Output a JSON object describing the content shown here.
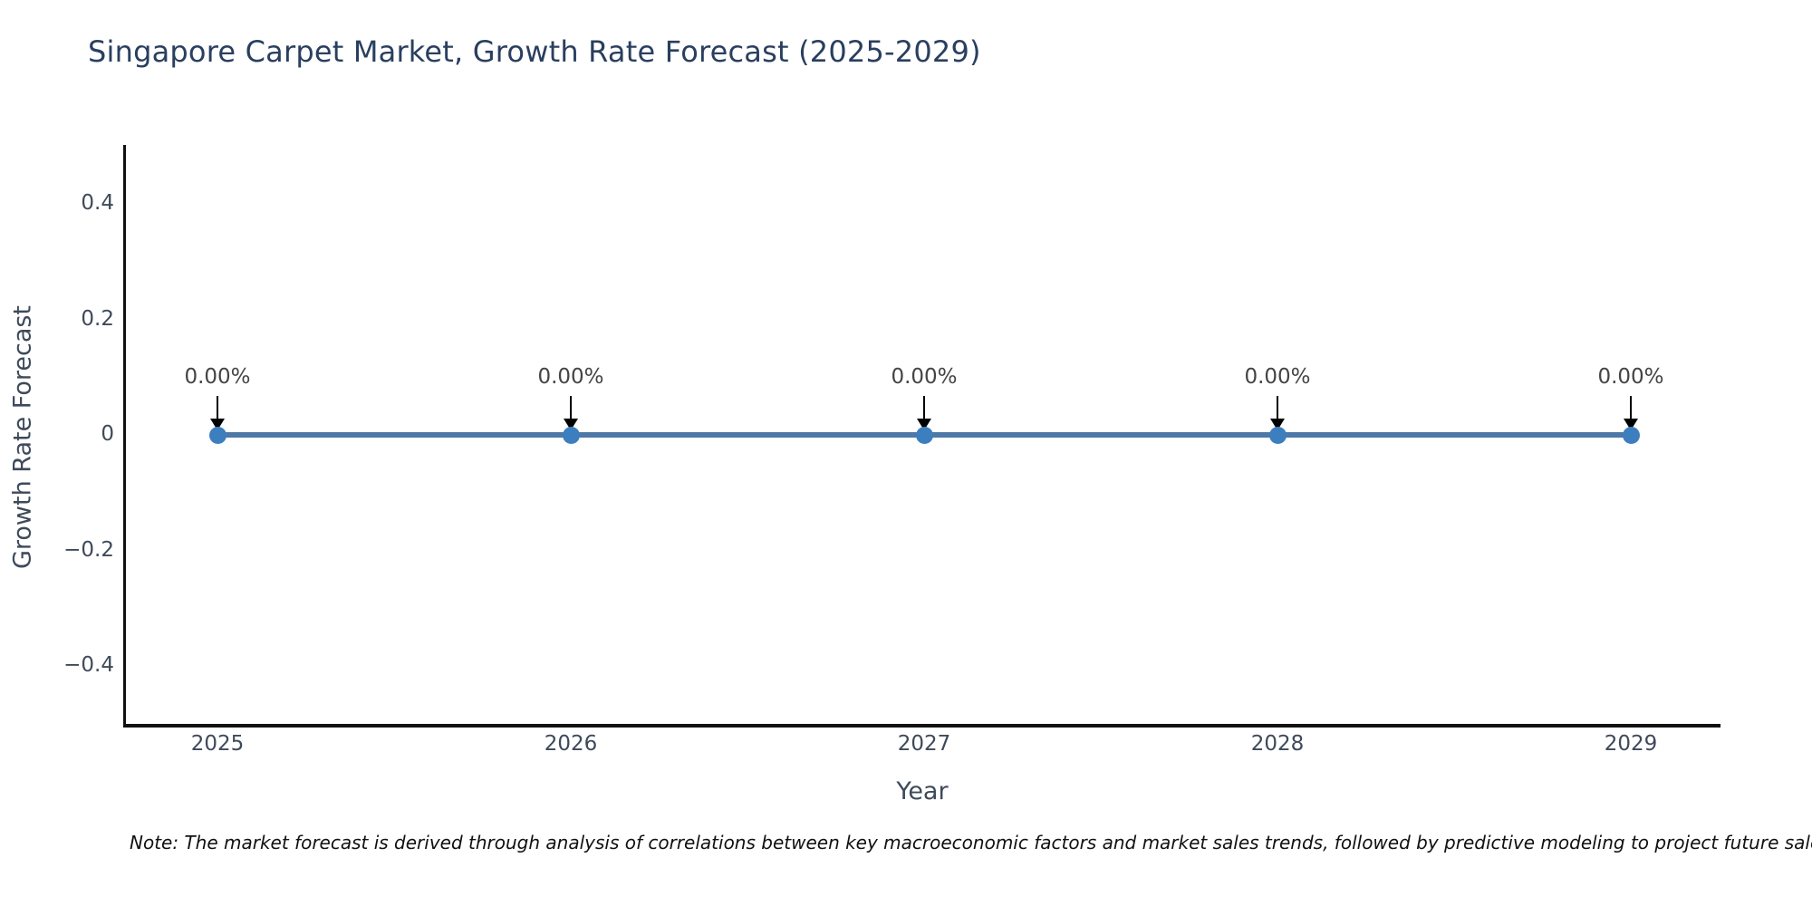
{
  "title": "Singapore Carpet Market, Growth Rate Forecast (2025-2029)",
  "note": "Note: The market forecast is derived through analysis of correlations between key macroeconomic factors and market sales trends, followed by predictive modeling to project future sales",
  "chart_data": {
    "type": "line",
    "title": "Singapore Carpet Market, Growth Rate Forecast (2025-2029)",
    "xlabel": "Year",
    "ylabel": "Growth Rate Forecast",
    "categories": [
      "2025",
      "2026",
      "2027",
      "2028",
      "2029"
    ],
    "series": [
      {
        "name": "Growth Rate Forecast",
        "values": [
          0,
          0,
          0,
          0,
          0
        ]
      }
    ],
    "point_labels": [
      "0.00%",
      "0.00%",
      "0.00%",
      "0.00%",
      "0.00%"
    ],
    "ytick_values": [
      0.4,
      0.2,
      0,
      -0.2,
      -0.4
    ],
    "ytick_labels": [
      "0.4",
      "0.2",
      "0",
      "−0.2",
      "−0.4"
    ],
    "ylim": [
      -0.5,
      0.5
    ],
    "grid": false,
    "legend_position": "none",
    "annotation_style": "value label with downward black arrow onto each point",
    "colors": {
      "line": "#4e79a7",
      "marker": "#3d7ebf",
      "axis": "#111111",
      "title_text": "#2a3f5f",
      "tick_text": "#3e4a5a",
      "annotation_text": "#444444",
      "annotation_arrow": "#000000",
      "note_text": "#111111",
      "background": "#ffffff"
    }
  }
}
